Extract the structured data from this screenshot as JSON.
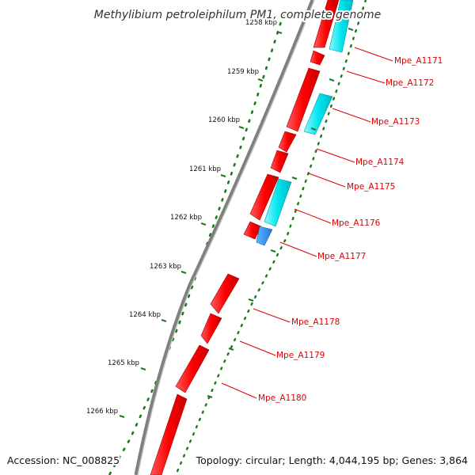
{
  "title": "Methylibium petroleiphilum PM1, complete genome",
  "footer": {
    "accession": "Accession: NC_008825",
    "summary": "Topology: circular; Length: 4,044,195 bp; Genes: 3,864"
  },
  "colors": {
    "gene_forward_strand": "#ff0000",
    "gene_reverse_strand": "#00e5ee",
    "gene_reverse_dark": "#1e90ff",
    "backbone": "#808080",
    "tick": "#1a7a1a",
    "label": "#e00000"
  },
  "scale_labels": [
    "1258 kbp",
    "1259 kbp",
    "1260 kbp",
    "1261 kbp",
    "1262 kbp",
    "1263 kbp",
    "1264 kbp",
    "1265 kbp",
    "1266 kbp"
  ],
  "gene_labels": [
    "Mpe_A1171",
    "Mpe_A1172",
    "Mpe_A1173",
    "Mpe_A1174",
    "Mpe_A1175",
    "Mpe_A1176",
    "Mpe_A1177",
    "Mpe_A1178",
    "Mpe_A1179",
    "Mpe_A1180"
  ]
}
